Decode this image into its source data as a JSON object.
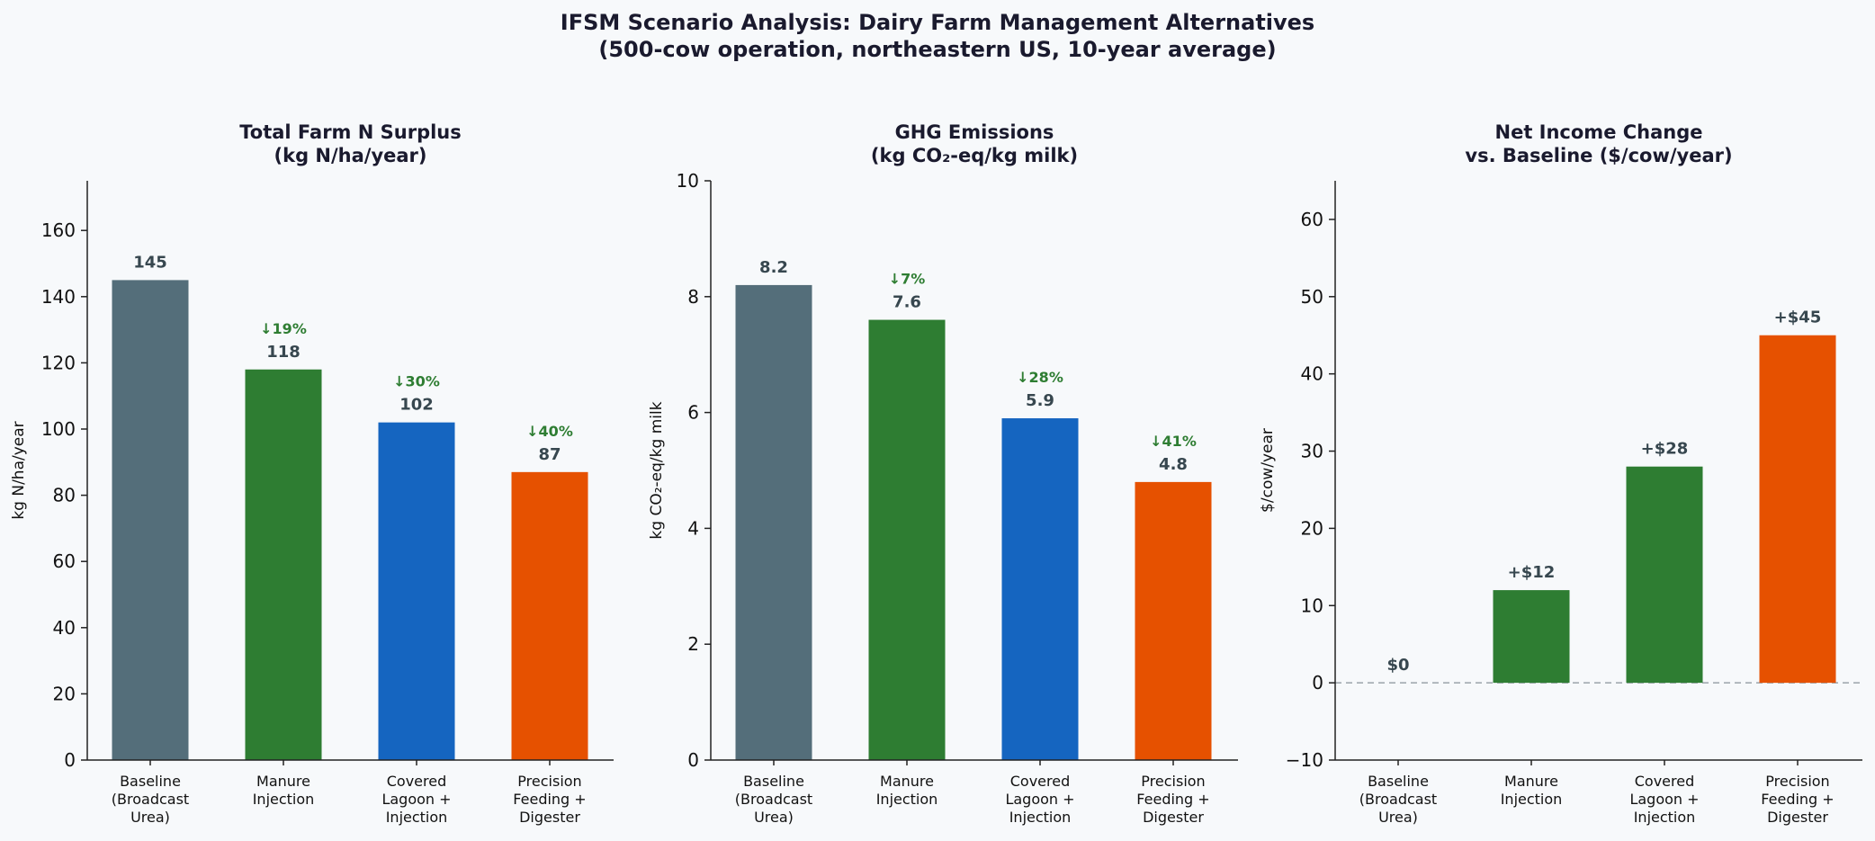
{
  "figure": {
    "title_line1": "IFSM Scenario Analysis: Dairy Farm Management Alternatives",
    "title_line2": "(500-cow operation, northeastern US, 10-year average)"
  },
  "colors": {
    "background": "#f7f9fb",
    "baseline": "#546e7a",
    "green": "#2e7d32",
    "blue": "#1565c0",
    "orange": "#e65100",
    "value_label": "#37474f",
    "reduction_label": "#2e7d32",
    "title": "#1a1a2e"
  },
  "chart_data": [
    {
      "type": "bar",
      "title_lines": [
        "Total Farm N Surplus",
        "(kg N/ha/year)"
      ],
      "ylabel": "kg N/ha/year",
      "xlabel": "",
      "ylim": [
        0,
        175
      ],
      "yticks": [
        0,
        20,
        40,
        60,
        80,
        100,
        120,
        140,
        160
      ],
      "categories": [
        [
          "Baseline",
          "(Broadcast",
          "Urea)"
        ],
        [
          "Manure",
          "Injection"
        ],
        [
          "Covered",
          "Lagoon +",
          "Injection"
        ],
        [
          "Precision",
          "Feeding +",
          "Digester"
        ]
      ],
      "values": [
        145,
        118,
        102,
        87
      ],
      "value_labels": [
        "145",
        "118",
        "102",
        "87"
      ],
      "reduction_labels": [
        "",
        "↓19%",
        "↓30%",
        "↓40%"
      ],
      "bar_colors": [
        "#546e7a",
        "#2e7d32",
        "#1565c0",
        "#e65100"
      ],
      "zero_line": false,
      "grid": false
    },
    {
      "type": "bar",
      "title_lines": [
        "GHG Emissions",
        "(kg CO₂-eq/kg milk)"
      ],
      "ylabel": "kg CO₂-eq/kg milk",
      "xlabel": "",
      "ylim": [
        0,
        10
      ],
      "yticks": [
        0,
        2,
        4,
        6,
        8,
        10
      ],
      "categories": [
        [
          "Baseline",
          "(Broadcast",
          "Urea)"
        ],
        [
          "Manure",
          "Injection"
        ],
        [
          "Covered",
          "Lagoon +",
          "Injection"
        ],
        [
          "Precision",
          "Feeding +",
          "Digester"
        ]
      ],
      "values": [
        8.2,
        7.6,
        5.9,
        4.8
      ],
      "value_labels": [
        "8.2",
        "7.6",
        "5.9",
        "4.8"
      ],
      "reduction_labels": [
        "",
        "↓7%",
        "↓28%",
        "↓41%"
      ],
      "bar_colors": [
        "#546e7a",
        "#2e7d32",
        "#1565c0",
        "#e65100"
      ],
      "zero_line": false,
      "grid": false
    },
    {
      "type": "bar",
      "title_lines": [
        "Net Income Change",
        "vs. Baseline ($/cow/year)"
      ],
      "ylabel": "$/cow/year",
      "xlabel": "",
      "ylim": [
        -10,
        65
      ],
      "yticks": [
        -10,
        0,
        10,
        20,
        30,
        40,
        50,
        60
      ],
      "categories": [
        [
          "Baseline",
          "(Broadcast",
          "Urea)"
        ],
        [
          "Manure",
          "Injection"
        ],
        [
          "Covered",
          "Lagoon +",
          "Injection"
        ],
        [
          "Precision",
          "Feeding +",
          "Digester"
        ]
      ],
      "values": [
        0,
        12,
        28,
        45
      ],
      "value_labels": [
        "$0",
        "+$12",
        "+$28",
        "+$45"
      ],
      "reduction_labels": [
        "",
        "",
        "",
        ""
      ],
      "bar_colors": [
        "#546e7a",
        "#2e7d32",
        "#2e7d32",
        "#e65100"
      ],
      "zero_line": true,
      "grid": false
    }
  ]
}
